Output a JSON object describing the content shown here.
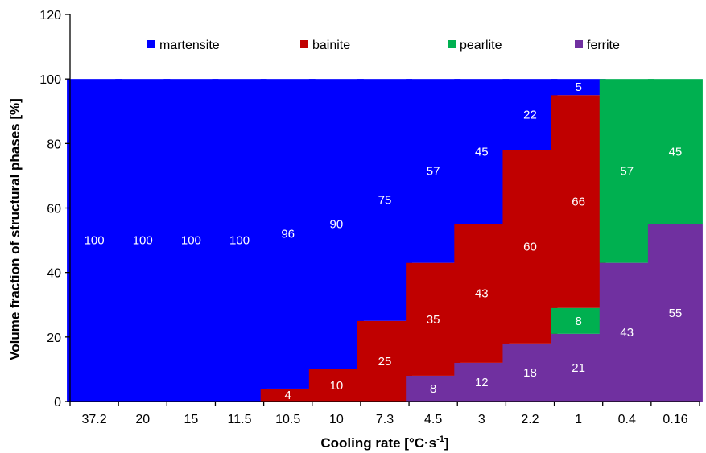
{
  "chart_data": {
    "type": "bar",
    "stacked": true,
    "xlabel_main": "Cooling rate [°C·s",
    "xlabel_sup": "-1",
    "xlabel_end": "]",
    "ylabel": "Volume fraction of structural phases [%]",
    "ylim": [
      0,
      120
    ],
    "yticks": [
      0,
      20,
      40,
      60,
      80,
      100,
      120
    ],
    "grid": false,
    "legend_placement": "top, inside plot area",
    "categories": [
      "37.2",
      "20",
      "15",
      "11.5",
      "10.5",
      "10",
      "7.3",
      "4.5",
      "3",
      "2.2",
      "1",
      "0.4",
      "0.16"
    ],
    "series": [
      {
        "name": "ferrite",
        "color": "#7030a0",
        "values": [
          0,
          0,
          0,
          0,
          0,
          0,
          0,
          8,
          12,
          18,
          21,
          43,
          55
        ]
      },
      {
        "name": "pearlite",
        "color": "#00b050",
        "values": [
          0,
          0,
          0,
          0,
          0,
          0,
          0,
          0,
          0,
          0,
          8,
          57,
          45
        ]
      },
      {
        "name": "bainite",
        "color": "#c00000",
        "values": [
          0,
          0,
          0,
          0,
          4,
          10,
          25,
          35,
          43,
          60,
          66,
          0,
          0
        ]
      },
      {
        "name": "martensite",
        "color": "#0000ff",
        "values": [
          100,
          100,
          100,
          100,
          96,
          90,
          75,
          57,
          45,
          22,
          5,
          0,
          0
        ]
      }
    ],
    "legend_order": [
      "martensite",
      "bainite",
      "pearlite",
      "ferrite"
    ]
  }
}
